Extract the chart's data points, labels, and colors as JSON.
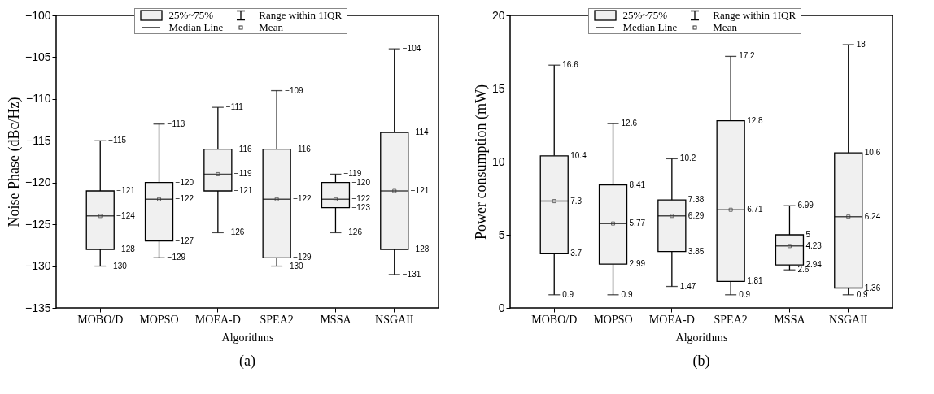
{
  "chart_data": [
    {
      "type": "box",
      "title": "(a)",
      "xlabel": "Algorithms",
      "ylabel": "Noise Phase (dBc/Hz)",
      "categories": [
        "MOBO/D",
        "MOPSO",
        "MOEA-D",
        "SPEA2",
        "MSSA",
        "NSGAII"
      ],
      "ylim": [
        -135,
        -100
      ],
      "yticks": [
        -135,
        -130,
        -125,
        -120,
        -115,
        -110,
        -105,
        -100
      ],
      "annotations": [
        "25%~75%",
        "Range within 1IQR",
        "Median Line",
        "Mean",
        {
          "text": "−130",
          "x": "MOBO/D",
          "y": -130
        },
        {
          "text": "−128",
          "x": "MOBO/D",
          "y": -128
        },
        {
          "text": "−124",
          "x": "MOBO/D",
          "y": -124
        },
        {
          "text": "−121",
          "x": "MOBO/D",
          "y": -121
        },
        {
          "text": "−115",
          "x": "MOBO/D",
          "y": -115
        },
        {
          "text": "−129",
          "x": "MOPSO",
          "y": -129
        },
        {
          "text": "−127",
          "x": "MOPSO",
          "y": -127
        },
        {
          "text": "−122",
          "x": "MOPSO",
          "y": -122
        },
        {
          "text": "−120",
          "x": "MOPSO",
          "y": -120
        },
        {
          "text": "−113",
          "x": "MOPSO",
          "y": -113
        },
        {
          "text": "−126",
          "x": "MOEA-D",
          "y": -126
        },
        {
          "text": "−121",
          "x": "MOEA-D",
          "y": -121
        },
        {
          "text": "−119",
          "x": "MOEA-D",
          "y": -119
        },
        {
          "text": "−116",
          "x": "MOEA-D",
          "y": -116
        },
        {
          "text": "−111",
          "x": "MOEA-D",
          "y": -111
        },
        {
          "text": "−130",
          "x": "SPEA2",
          "y": -130
        },
        {
          "text": "−129",
          "x": "SPEA2",
          "y": -129
        },
        {
          "text": "−122",
          "x": "SPEA2",
          "y": -122
        },
        {
          "text": "−116",
          "x": "SPEA2",
          "y": -116
        },
        {
          "text": "−109",
          "x": "SPEA2",
          "y": -109
        },
        {
          "text": "−126",
          "x": "MSSA",
          "y": -126
        },
        {
          "text": "−123",
          "x": "MSSA",
          "y": -123
        },
        {
          "text": "−122",
          "x": "MSSA",
          "y": -122
        },
        {
          "text": "−120",
          "x": "MSSA",
          "y": -120
        },
        {
          "text": "−119",
          "x": "MSSA",
          "y": -119
        },
        {
          "text": "−131",
          "x": "NSGAII",
          "y": -131
        },
        {
          "text": "−128",
          "x": "NSGAII",
          "y": -128
        },
        {
          "text": "−121",
          "x": "NSGAII",
          "y": -121
        },
        {
          "text": "−114",
          "x": "NSGAII",
          "y": -114
        },
        {
          "text": "−104",
          "x": "NSGAII",
          "y": -104
        }
      ],
      "series": [
        {
          "color": "#f0f0f0",
          "boxes": [
            {
              "low": -130,
              "q1": -128,
              "median": -124,
              "q3": -121,
              "high": -115,
              "mean": -124
            },
            {
              "low": -129,
              "q1": -127,
              "median": -122,
              "q3": -120,
              "high": -113,
              "mean": -122
            },
            {
              "low": -126,
              "q1": -121,
              "median": -119,
              "q3": -116,
              "high": -111,
              "mean": -119
            },
            {
              "low": -130,
              "q1": -129,
              "median": -122,
              "q3": -116,
              "high": -109,
              "mean": -122
            },
            {
              "low": -126,
              "q1": -123,
              "median": -122,
              "q3": -120,
              "high": -119,
              "mean": -122
            },
            {
              "low": -131,
              "q1": -128,
              "median": -121,
              "q3": -114,
              "high": -104,
              "mean": -121
            }
          ]
        }
      ]
    },
    {
      "type": "box",
      "title": "(b)",
      "xlabel": "Algorithms",
      "ylabel": "Power consumption (mW)",
      "categories": [
        "MOBO/D",
        "MOPSO",
        "MOEA-D",
        "SPEA2",
        "MSSA",
        "NSGAII"
      ],
      "ylim": [
        0,
        20
      ],
      "yticks": [
        0,
        5,
        10,
        15,
        20
      ],
      "annotations": [
        "25%~75%",
        "Range within 1IQR",
        "Median Line",
        "Mean",
        {
          "text": "0.9",
          "x": "MOBO/D",
          "y": 0.9
        },
        {
          "text": "3.7",
          "x": "MOBO/D",
          "y": 3.7
        },
        {
          "text": "7.3",
          "x": "MOBO/D",
          "y": 7.3
        },
        {
          "text": "10.4",
          "x": "MOBO/D",
          "y": 10.4
        },
        {
          "text": "16.6",
          "x": "MOBO/D",
          "y": 16.6
        },
        {
          "text": "0.9",
          "x": "MOPSO",
          "y": 0.9
        },
        {
          "text": "2.99",
          "x": "MOPSO",
          "y": 2.99
        },
        {
          "text": "5.77",
          "x": "MOPSO",
          "y": 5.77
        },
        {
          "text": "8.41",
          "x": "MOPSO",
          "y": 8.41
        },
        {
          "text": "12.6",
          "x": "MOPSO",
          "y": 12.6
        },
        {
          "text": "1.47",
          "x": "MOEA-D",
          "y": 1.47
        },
        {
          "text": "3.85",
          "x": "MOEA-D",
          "y": 3.85
        },
        {
          "text": "6.29",
          "x": "MOEA-D",
          "y": 6.29
        },
        {
          "text": "7.38",
          "x": "MOEA-D",
          "y": 7.38
        },
        {
          "text": "10.2",
          "x": "MOEA-D",
          "y": 10.2
        },
        {
          "text": "0.9",
          "x": "SPEA2",
          "y": 0.9
        },
        {
          "text": "1.81",
          "x": "SPEA2",
          "y": 1.81
        },
        {
          "text": "6.71",
          "x": "SPEA2",
          "y": 6.71
        },
        {
          "text": "12.8",
          "x": "SPEA2",
          "y": 12.8
        },
        {
          "text": "17.2",
          "x": "SPEA2",
          "y": 17.2
        },
        {
          "text": "2.6",
          "x": "MSSA",
          "y": 2.6
        },
        {
          "text": "2.94",
          "x": "MSSA",
          "y": 2.94
        },
        {
          "text": "4.23",
          "x": "MSSA",
          "y": 4.23
        },
        {
          "text": "5",
          "x": "MSSA",
          "y": 5
        },
        {
          "text": "6.99",
          "x": "MSSA",
          "y": 6.99
        },
        {
          "text": "0.9",
          "x": "NSGAII",
          "y": 0.9
        },
        {
          "text": "1.36",
          "x": "NSGAII",
          "y": 1.36
        },
        {
          "text": "6.24",
          "x": "NSGAII",
          "y": 6.24
        },
        {
          "text": "10.6",
          "x": "NSGAII",
          "y": 10.6
        },
        {
          "text": "18",
          "x": "NSGAII",
          "y": 18
        }
      ],
      "series": [
        {
          "color": "#f0f0f0",
          "boxes": [
            {
              "low": 0.9,
              "q1": 3.7,
              "median": 7.3,
              "q3": 10.4,
              "high": 16.6,
              "mean": 7.3
            },
            {
              "low": 0.9,
              "q1": 2.99,
              "median": 5.77,
              "q3": 8.41,
              "high": 12.6,
              "mean": 5.77
            },
            {
              "low": 1.47,
              "q1": 3.85,
              "median": 6.29,
              "q3": 7.38,
              "high": 10.2,
              "mean": 6.29
            },
            {
              "low": 0.9,
              "q1": 1.81,
              "median": 6.71,
              "q3": 12.8,
              "high": 17.2,
              "mean": 6.71
            },
            {
              "low": 2.6,
              "q1": 2.94,
              "median": 4.23,
              "q3": 5,
              "high": 6.99,
              "mean": 4.23
            },
            {
              "low": 0.9,
              "q1": 1.36,
              "median": 6.24,
              "q3": 10.6,
              "high": 18,
              "mean": 6.24
            }
          ]
        }
      ]
    }
  ]
}
